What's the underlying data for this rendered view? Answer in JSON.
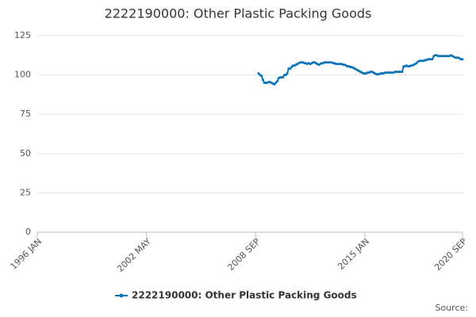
{
  "chart_data": {
    "type": "line",
    "title": "2222190000: Other Plastic Packing Goods",
    "source": "Source:",
    "categories": [
      "1996 JAN",
      null,
      null,
      null,
      null,
      null,
      null,
      null,
      null,
      null,
      null,
      null,
      null,
      null,
      null,
      null,
      null,
      null,
      null,
      null,
      null,
      null,
      null,
      null,
      null,
      null,
      null,
      null,
      null,
      null,
      null,
      null,
      null,
      null,
      null,
      null,
      null,
      null,
      null,
      null,
      null,
      null,
      null,
      null,
      null,
      null,
      null,
      null,
      null,
      null,
      null,
      null,
      null,
      null,
      null,
      null,
      null,
      null,
      null,
      null,
      null,
      null,
      null,
      null,
      null,
      null,
      null,
      null,
      null,
      null,
      null,
      null,
      null,
      null,
      null,
      null,
      "2002 MAY",
      null,
      null,
      null,
      null,
      null,
      null,
      null,
      null,
      null,
      null,
      null,
      null,
      null,
      null,
      null,
      null,
      null,
      null,
      null,
      null,
      null,
      null,
      null,
      null,
      null,
      null,
      null,
      null,
      null,
      null,
      null,
      null,
      null,
      null,
      null,
      null,
      null,
      null,
      null,
      null,
      null,
      null,
      null,
      null,
      null,
      null,
      null,
      null,
      null,
      null,
      null,
      null,
      null,
      null,
      null,
      null,
      null,
      null,
      null,
      null,
      null,
      null,
      null,
      null,
      null,
      null,
      null,
      null,
      null,
      null,
      null,
      null,
      null,
      null,
      null,
      "2008 SEP",
      null,
      null,
      null,
      null,
      null,
      null,
      null,
      null,
      null,
      null,
      null,
      null,
      null,
      null,
      null,
      null,
      null,
      null,
      null,
      null,
      null,
      null,
      null,
      null,
      null,
      null,
      null,
      null,
      null,
      null,
      null,
      null,
      null,
      null,
      null,
      null,
      null,
      null,
      null,
      null,
      null,
      null,
      null,
      null,
      null,
      null,
      null,
      null,
      null,
      null,
      null,
      null,
      null,
      null,
      null,
      null,
      null,
      null,
      null,
      null,
      null,
      null,
      null,
      null,
      null,
      null,
      null,
      null,
      null,
      null,
      null,
      null,
      null,
      null,
      null,
      "2015 JAN",
      null,
      null,
      null,
      null,
      null,
      null,
      null,
      null,
      null,
      null,
      null,
      null,
      null,
      null,
      null,
      null,
      null,
      null,
      null,
      null,
      null,
      null,
      null,
      null,
      null,
      null,
      null,
      null,
      null,
      null,
      null,
      null,
      null,
      null,
      null,
      null,
      null,
      null,
      null,
      null,
      null,
      null,
      null,
      null,
      null,
      null,
      null,
      null,
      null,
      null,
      null,
      null,
      null,
      null,
      null,
      null,
      null,
      null,
      null,
      null,
      null,
      null,
      null,
      null,
      null,
      null,
      null,
      "2020 SEP"
    ],
    "series": [
      {
        "name": "2222190000: Other Plastic Packing Goods",
        "color": "#0a74b8",
        "values": [
          null,
          null,
          null,
          null,
          null,
          null,
          null,
          null,
          null,
          null,
          null,
          null,
          null,
          null,
          null,
          null,
          null,
          null,
          null,
          null,
          null,
          null,
          null,
          null,
          null,
          null,
          null,
          null,
          null,
          null,
          null,
          null,
          null,
          null,
          null,
          null,
          null,
          null,
          null,
          null,
          null,
          null,
          null,
          null,
          null,
          null,
          null,
          null,
          null,
          null,
          null,
          null,
          null,
          null,
          null,
          null,
          null,
          null,
          null,
          null,
          null,
          null,
          null,
          null,
          null,
          null,
          null,
          null,
          null,
          null,
          null,
          null,
          null,
          null,
          null,
          null,
          null,
          null,
          null,
          null,
          null,
          null,
          null,
          null,
          null,
          null,
          null,
          null,
          null,
          null,
          null,
          null,
          null,
          null,
          null,
          null,
          null,
          null,
          null,
          null,
          null,
          null,
          null,
          null,
          null,
          null,
          null,
          null,
          null,
          null,
          null,
          null,
          null,
          null,
          null,
          null,
          null,
          null,
          null,
          null,
          null,
          null,
          null,
          null,
          null,
          null,
          null,
          null,
          null,
          null,
          null,
          null,
          null,
          null,
          null,
          null,
          null,
          null,
          null,
          null,
          null,
          null,
          null,
          null,
          null,
          null,
          null,
          null,
          null,
          null,
          null,
          null,
          null,
          null,
          101,
          100,
          99.5,
          97,
          95,
          95,
          95,
          95.5,
          95.5,
          95,
          94.5,
          94,
          95,
          96,
          98,
          98.5,
          98.5,
          98.5,
          100,
          100,
          101,
          104,
          104,
          105,
          106,
          106,
          106.5,
          107,
          107.5,
          108,
          108,
          108,
          107.5,
          107.5,
          107,
          107.5,
          107,
          107.5,
          108,
          108,
          107.5,
          107,
          106.5,
          107,
          107.5,
          107.5,
          108,
          108,
          108,
          108,
          108,
          108,
          107.5,
          107.5,
          107,
          107,
          107,
          107,
          107,
          106.5,
          106.5,
          106,
          105.5,
          105.5,
          105,
          105,
          104.5,
          104,
          103.5,
          103,
          102.5,
          102,
          101.5,
          101,
          101,
          101,
          101.5,
          101.5,
          102,
          102,
          101.5,
          101,
          100.5,
          100.5,
          100.5,
          101,
          101,
          101,
          101.5,
          101.5,
          101.5,
          101.5,
          101.5,
          101.5,
          101.5,
          102,
          102,
          102,
          102,
          102,
          102,
          105.5,
          105.5,
          106,
          105.5,
          105.5,
          106,
          106,
          106.5,
          107,
          107.5,
          108.5,
          109,
          109,
          109,
          109,
          109.5,
          109.5,
          110,
          110,
          110,
          110,
          112,
          112.5,
          112.5,
          112,
          112,
          112,
          112,
          112,
          112,
          112,
          112,
          112,
          112.5,
          112,
          111.5,
          111,
          111,
          111,
          110.5,
          110,
          110
        ]
      }
    ],
    "ylim": [
      0,
      125
    ],
    "yticks": [
      0,
      25,
      50,
      75,
      100,
      125
    ],
    "grid": true,
    "legend": "bottom"
  }
}
